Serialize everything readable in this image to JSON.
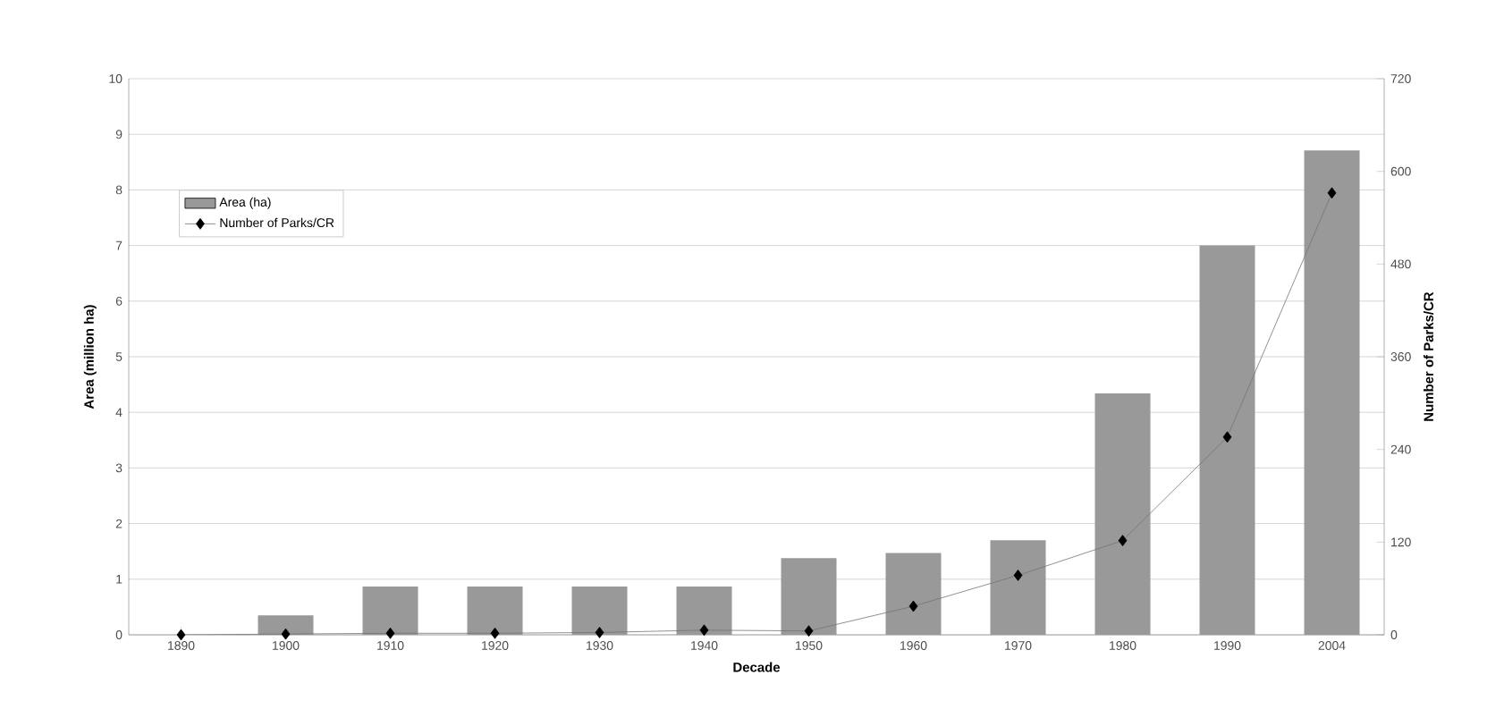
{
  "chart_data": {
    "type": "bar",
    "xlabel": "Decade",
    "ylabel": "Area (million ha)",
    "y2label": "Number of Parks/CR",
    "categories": [
      "1890",
      "1900",
      "1910",
      "1920",
      "1930",
      "1940",
      "1950",
      "1960",
      "1970",
      "1980",
      "1990",
      "2004"
    ],
    "series": [
      {
        "name": "Area (ha)",
        "color": "#999999",
        "values": [
          0,
          0.35,
          0.87,
          0.87,
          0.87,
          0.87,
          1.38,
          1.47,
          1.7,
          4.34,
          7.0,
          8.71
        ]
      },
      {
        "name": "Number of Parks/CR",
        "type": "line",
        "axis": "y2",
        "color": "#000000",
        "marker": "diamond",
        "values": [
          0,
          1,
          2,
          2,
          3,
          6,
          5,
          37,
          77,
          122,
          256,
          572
        ]
      }
    ],
    "ylim": [
      0,
      10
    ],
    "yticks": [
      0,
      1,
      2,
      3,
      4,
      5,
      6,
      7,
      8,
      9,
      10
    ],
    "y2lim": [
      0,
      720
    ],
    "y2ticks": [
      0,
      120,
      240,
      360,
      480,
      600,
      720
    ],
    "grid": "y",
    "legend": "top left"
  }
}
